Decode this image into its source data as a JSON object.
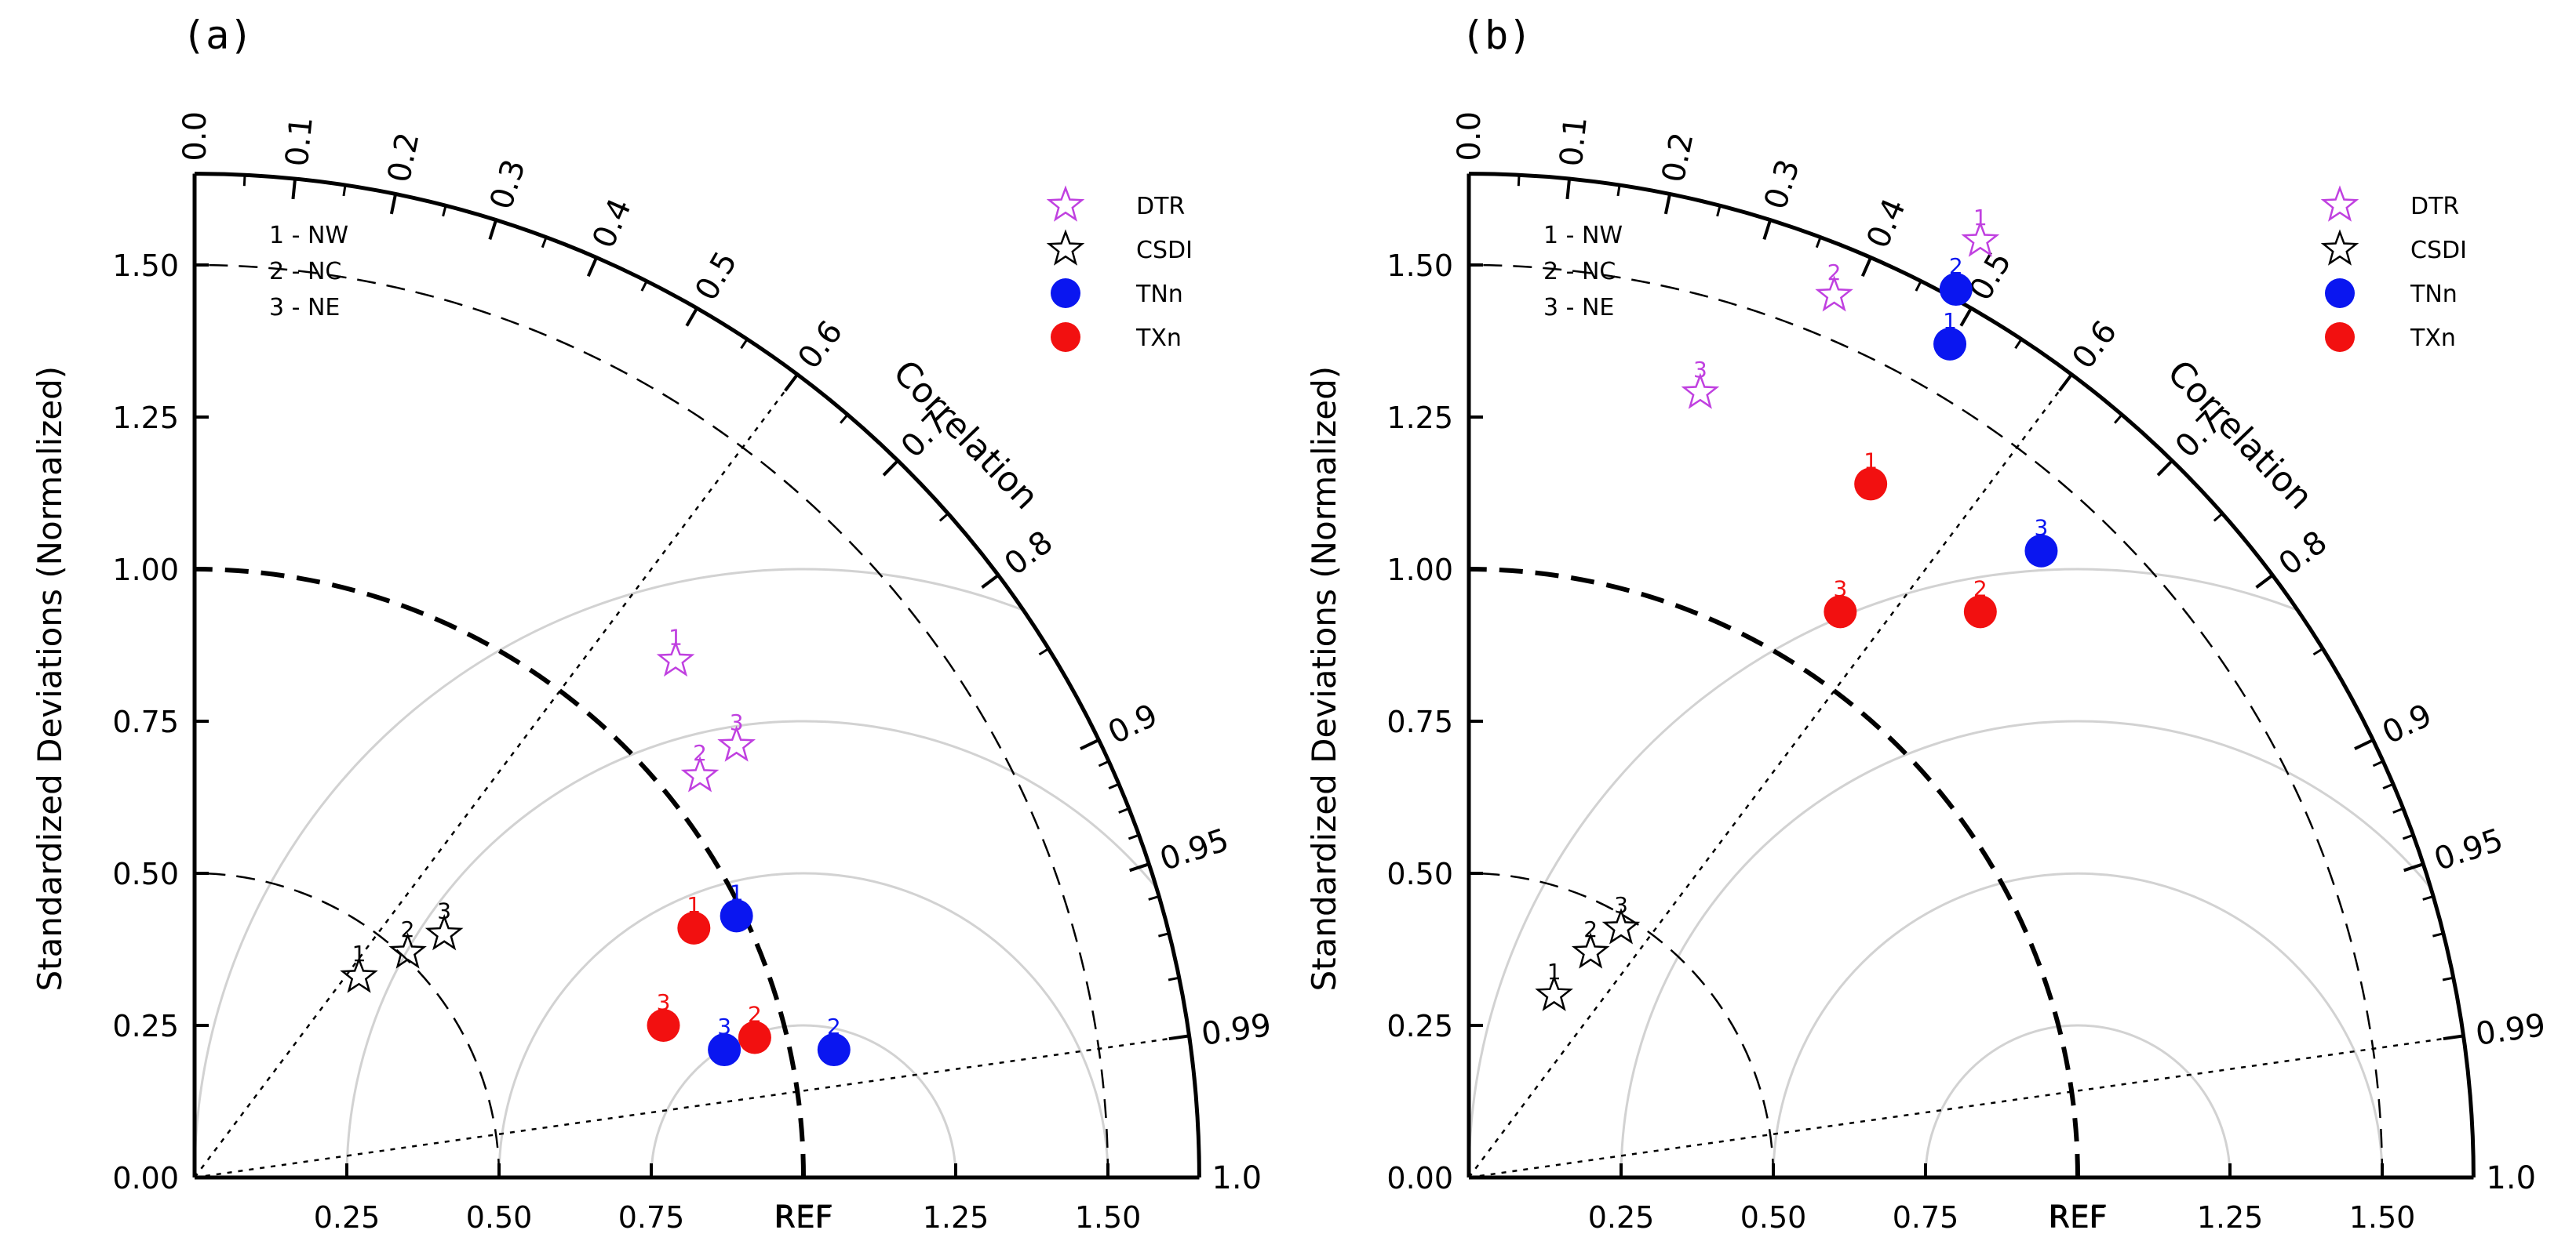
{
  "colors": {
    "DTR": "#c040e0",
    "CSDI": "#000000",
    "TNn": "#0a16f0",
    "TXn": "#f21010",
    "rms_circle": "#d2d2d2",
    "axis": "#000000"
  },
  "chart_data": [
    {
      "type": "scatter",
      "panel_label": "(a)",
      "ylabel": "Standardized Deviations (Normalized)",
      "arc_label": "Correlation",
      "ref_label": "REF",
      "std_max": 1.65,
      "x_ticks": [
        "0.00",
        "0.25",
        "0.50",
        "0.75",
        "REF",
        "1.25",
        "1.50"
      ],
      "y_ticks": [
        "0.00",
        "0.25",
        "0.50",
        "0.75",
        "1.00",
        "1.25",
        "1.50"
      ],
      "corr_labels": [
        "0.0",
        "0.1",
        "0.2",
        "0.3",
        "0.4",
        "0.5",
        "0.6",
        "0.7",
        "0.8",
        "0.9",
        "0.95",
        "0.99",
        "1.0"
      ],
      "region_key": [
        "1 - NW",
        "2 - NC",
        "3 - NE"
      ],
      "legend": [
        {
          "name": "DTR",
          "marker": "star-open"
        },
        {
          "name": "CSDI",
          "marker": "star-open"
        },
        {
          "name": "TNn",
          "marker": "dot"
        },
        {
          "name": "TXn",
          "marker": "dot"
        }
      ],
      "series": [
        {
          "name": "DTR",
          "points": [
            {
              "label": "1",
              "x": 0.79,
              "y": 0.85
            },
            {
              "label": "2",
              "x": 0.83,
              "y": 0.66
            },
            {
              "label": "3",
              "x": 0.89,
              "y": 0.71
            }
          ]
        },
        {
          "name": "CSDI",
          "points": [
            {
              "label": "1",
              "x": 0.27,
              "y": 0.33
            },
            {
              "label": "2",
              "x": 0.35,
              "y": 0.37
            },
            {
              "label": "3",
              "x": 0.41,
              "y": 0.4
            }
          ]
        },
        {
          "name": "TNn",
          "points": [
            {
              "label": "1",
              "x": 0.89,
              "y": 0.43
            },
            {
              "label": "2",
              "x": 1.05,
              "y": 0.21
            },
            {
              "label": "3",
              "x": 0.87,
              "y": 0.21
            }
          ]
        },
        {
          "name": "TXn",
          "points": [
            {
              "label": "1",
              "x": 0.82,
              "y": 0.41
            },
            {
              "label": "2",
              "x": 0.92,
              "y": 0.23
            },
            {
              "label": "3",
              "x": 0.77,
              "y": 0.25
            }
          ]
        }
      ]
    },
    {
      "type": "scatter",
      "panel_label": "(b)",
      "ylabel": "Standardized Deviations (Normalized)",
      "arc_label": "Correlation",
      "ref_label": "REF",
      "std_max": 1.65,
      "x_ticks": [
        "0.00",
        "0.25",
        "0.50",
        "0.75",
        "REF",
        "1.25",
        "1.50"
      ],
      "y_ticks": [
        "0.00",
        "0.25",
        "0.50",
        "0.75",
        "1.00",
        "1.25",
        "1.50"
      ],
      "corr_labels": [
        "0.0",
        "0.1",
        "0.2",
        "0.3",
        "0.4",
        "0.5",
        "0.6",
        "0.7",
        "0.8",
        "0.9",
        "0.95",
        "0.99",
        "1.0"
      ],
      "region_key": [
        "1 - NW",
        "2 - NC",
        "3 - NE"
      ],
      "legend": [
        {
          "name": "DTR",
          "marker": "star-open"
        },
        {
          "name": "CSDI",
          "marker": "star-open"
        },
        {
          "name": "TNn",
          "marker": "dot"
        },
        {
          "name": "TXn",
          "marker": "dot"
        }
      ],
      "series": [
        {
          "name": "DTR",
          "points": [
            {
              "label": "1",
              "x": 0.84,
              "y": 1.54
            },
            {
              "label": "2",
              "x": 0.6,
              "y": 1.45
            },
            {
              "label": "3",
              "x": 0.38,
              "y": 1.29
            }
          ]
        },
        {
          "name": "CSDI",
          "points": [
            {
              "label": "1",
              "x": 0.14,
              "y": 0.3
            },
            {
              "label": "2",
              "x": 0.2,
              "y": 0.37
            },
            {
              "label": "3",
              "x": 0.25,
              "y": 0.41
            }
          ]
        },
        {
          "name": "TNn",
          "points": [
            {
              "label": "1",
              "x": 0.79,
              "y": 1.37
            },
            {
              "label": "2",
              "x": 0.8,
              "y": 1.46
            },
            {
              "label": "3",
              "x": 0.94,
              "y": 1.03
            }
          ]
        },
        {
          "name": "TXn",
          "points": [
            {
              "label": "1",
              "x": 0.66,
              "y": 1.14
            },
            {
              "label": "2",
              "x": 0.84,
              "y": 0.93
            },
            {
              "label": "3",
              "x": 0.61,
              "y": 0.93
            }
          ]
        }
      ]
    }
  ]
}
